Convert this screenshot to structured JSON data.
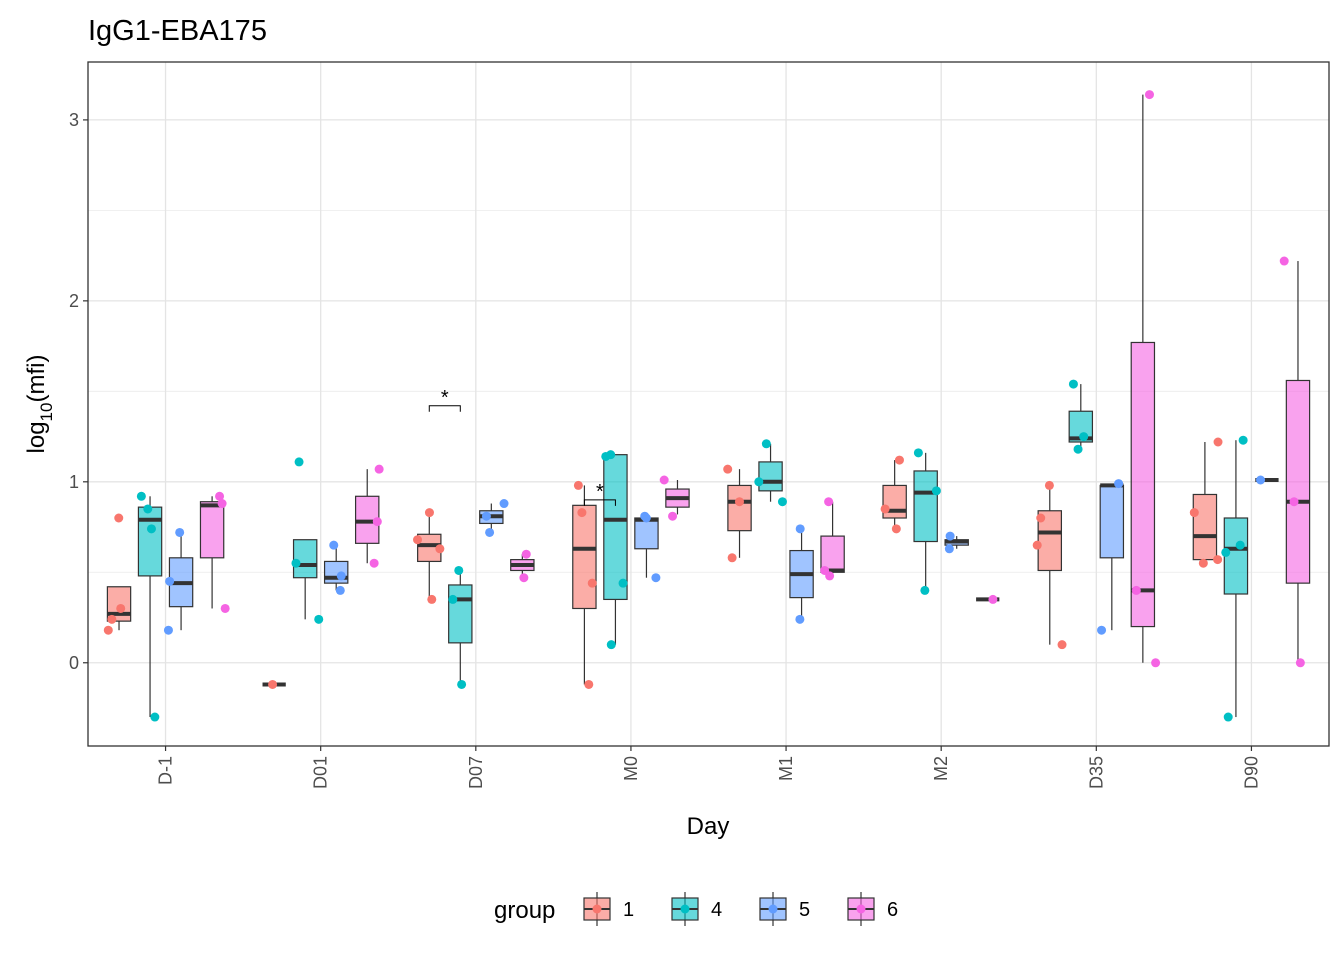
{
  "chart_data": {
    "type": "boxplot",
    "title": "IgG1-EBA175",
    "xlabel": "Day",
    "ylabel_base": "log",
    "ylabel_sub": "10",
    "ylabel_arg": "(mfi)",
    "categories": [
      "D-1",
      "D01",
      "D07",
      "M0",
      "M1",
      "M2",
      "D35",
      "D90"
    ],
    "ylim": [
      -0.46,
      3.32
    ],
    "yticks": [
      0,
      1,
      2,
      3
    ],
    "grid": true,
    "legend": {
      "title": "group",
      "position": "bottom",
      "entries": [
        "1",
        "4",
        "5",
        "6"
      ]
    },
    "colors": {
      "1": "#F8766D",
      "4": "#00BFC4",
      "5": "#619CFF",
      "6": "#F564E3"
    },
    "series": [
      {
        "name": "1",
        "boxes": [
          {
            "cat": "D-1",
            "min": 0.18,
            "q1": 0.23,
            "median": 0.27,
            "q3": 0.42,
            "max": 0.42,
            "points": [
              0.8,
              0.3,
              0.18,
              0.24
            ]
          },
          {
            "cat": "D01",
            "min": -0.12,
            "q1": -0.12,
            "median": -0.12,
            "q3": -0.12,
            "max": -0.12,
            "points": [
              -0.12
            ]
          },
          {
            "cat": "D07",
            "min": 0.35,
            "q1": 0.56,
            "median": 0.65,
            "q3": 0.71,
            "max": 0.83,
            "points": [
              0.83,
              0.68,
              0.63,
              0.35
            ]
          },
          {
            "cat": "M0",
            "min": -0.12,
            "q1": 0.3,
            "median": 0.63,
            "q3": 0.87,
            "max": 0.98,
            "points": [
              0.83,
              0.98,
              0.44,
              -0.12
            ]
          },
          {
            "cat": "M1",
            "min": 0.58,
            "q1": 0.73,
            "median": 0.89,
            "q3": 0.98,
            "max": 1.07,
            "points": [
              1.07,
              0.89,
              0.58
            ]
          },
          {
            "cat": "M2",
            "min": 0.74,
            "q1": 0.8,
            "median": 0.84,
            "q3": 0.98,
            "max": 1.12,
            "points": [
              1.12,
              0.85,
              0.74
            ]
          },
          {
            "cat": "D35",
            "min": 0.1,
            "q1": 0.51,
            "median": 0.72,
            "q3": 0.84,
            "max": 0.98,
            "points": [
              0.98,
              0.8,
              0.65,
              0.1
            ]
          },
          {
            "cat": "D90",
            "min": 0.55,
            "q1": 0.57,
            "median": 0.7,
            "q3": 0.93,
            "max": 1.22,
            "points": [
              1.22,
              0.83,
              0.55,
              0.57
            ]
          }
        ]
      },
      {
        "name": "4",
        "boxes": [
          {
            "cat": "D-1",
            "min": -0.3,
            "q1": 0.48,
            "median": 0.79,
            "q3": 0.86,
            "max": 0.92,
            "points": [
              0.92,
              0.85,
              0.74,
              -0.3
            ]
          },
          {
            "cat": "D01",
            "min": 0.24,
            "q1": 0.47,
            "median": 0.54,
            "q3": 0.68,
            "max": 0.68,
            "points": [
              1.11,
              0.55,
              0.24
            ]
          },
          {
            "cat": "D07",
            "min": -0.12,
            "q1": 0.11,
            "median": 0.35,
            "q3": 0.43,
            "max": 0.51,
            "points": [
              0.51,
              0.35,
              -0.12
            ]
          },
          {
            "cat": "M0",
            "min": 0.1,
            "q1": 0.35,
            "median": 0.79,
            "q3": 1.15,
            "max": 1.15,
            "points": [
              1.15,
              1.14,
              0.44,
              0.1
            ]
          },
          {
            "cat": "M1",
            "min": 0.89,
            "q1": 0.95,
            "median": 1.0,
            "q3": 1.11,
            "max": 1.21,
            "points": [
              1.21,
              1.0,
              0.89
            ]
          },
          {
            "cat": "M2",
            "min": 0.4,
            "q1": 0.67,
            "median": 0.94,
            "q3": 1.06,
            "max": 1.16,
            "points": [
              1.16,
              0.95,
              0.4
            ]
          },
          {
            "cat": "D35",
            "min": 1.18,
            "q1": 1.22,
            "median": 1.24,
            "q3": 1.39,
            "max": 1.54,
            "points": [
              1.54,
              1.25,
              1.18
            ]
          },
          {
            "cat": "D90",
            "min": -0.3,
            "q1": 0.38,
            "median": 0.63,
            "q3": 0.8,
            "max": 1.23,
            "points": [
              1.23,
              0.65,
              0.61,
              -0.3
            ]
          }
        ]
      },
      {
        "name": "5",
        "boxes": [
          {
            "cat": "D-1",
            "min": 0.18,
            "q1": 0.31,
            "median": 0.44,
            "q3": 0.58,
            "max": 0.72,
            "points": [
              0.72,
              0.45,
              0.18
            ]
          },
          {
            "cat": "D01",
            "min": 0.4,
            "q1": 0.44,
            "median": 0.47,
            "q3": 0.56,
            "max": 0.65,
            "points": [
              0.65,
              0.48,
              0.4
            ]
          },
          {
            "cat": "D07",
            "min": 0.72,
            "q1": 0.77,
            "median": 0.81,
            "q3": 0.84,
            "max": 0.88,
            "points": [
              0.88,
              0.81,
              0.72
            ]
          },
          {
            "cat": "M0",
            "min": 0.47,
            "q1": 0.63,
            "median": 0.79,
            "q3": 0.8,
            "max": 0.8,
            "points": [
              0.8,
              0.81,
              0.47
            ]
          },
          {
            "cat": "M1",
            "min": 0.24,
            "q1": 0.36,
            "median": 0.49,
            "q3": 0.62,
            "max": 0.74,
            "points": [
              0.74,
              0.24
            ]
          },
          {
            "cat": "M2",
            "min": 0.63,
            "q1": 0.65,
            "median": 0.67,
            "q3": 0.68,
            "max": 0.7,
            "points": [
              0.7,
              0.63
            ]
          },
          {
            "cat": "D35",
            "min": 0.18,
            "q1": 0.58,
            "median": 0.98,
            "q3": 0.98,
            "max": 0.99,
            "points": [
              0.99,
              0.18
            ]
          },
          {
            "cat": "D90",
            "min": 1.01,
            "q1": 1.01,
            "median": 1.01,
            "q3": 1.01,
            "max": 1.01,
            "points": [
              1.01
            ]
          }
        ]
      },
      {
        "name": "6",
        "boxes": [
          {
            "cat": "D-1",
            "min": 0.3,
            "q1": 0.58,
            "median": 0.87,
            "q3": 0.89,
            "max": 0.92,
            "points": [
              0.92,
              0.88,
              0.3
            ]
          },
          {
            "cat": "D01",
            "min": 0.55,
            "q1": 0.66,
            "median": 0.78,
            "q3": 0.92,
            "max": 1.07,
            "points": [
              1.07,
              0.78,
              0.55
            ]
          },
          {
            "cat": "D07",
            "min": 0.47,
            "q1": 0.51,
            "median": 0.54,
            "q3": 0.57,
            "max": 0.6,
            "points": [
              0.6,
              0.47
            ]
          },
          {
            "cat": "M0",
            "min": 0.82,
            "q1": 0.86,
            "median": 0.91,
            "q3": 0.96,
            "max": 1.01,
            "points": [
              1.01,
              0.81
            ]
          },
          {
            "cat": "M1",
            "min": 0.48,
            "q1": 0.5,
            "median": 0.51,
            "q3": 0.7,
            "max": 0.89,
            "points": [
              0.89,
              0.51,
              0.48
            ]
          },
          {
            "cat": "M2",
            "min": 0.35,
            "q1": 0.35,
            "median": 0.35,
            "q3": 0.35,
            "max": 0.35,
            "points": [
              0.35
            ]
          },
          {
            "cat": "D35",
            "min": 0.0,
            "q1": 0.2,
            "median": 0.4,
            "q3": 1.77,
            "max": 3.14,
            "points": [
              3.14,
              0.4,
              0.0
            ]
          },
          {
            "cat": "D90",
            "min": 0.0,
            "q1": 0.44,
            "median": 0.89,
            "q3": 1.56,
            "max": 2.22,
            "points": [
              2.22,
              0.89,
              0.0
            ]
          }
        ]
      }
    ],
    "annotations": [
      {
        "cat": "D07",
        "from_group": "1",
        "to_group": "4",
        "y": 1.42,
        "label": "*"
      },
      {
        "cat": "M0",
        "from_group": "1",
        "to_group": "4",
        "y": 0.9,
        "label": "*"
      }
    ]
  }
}
